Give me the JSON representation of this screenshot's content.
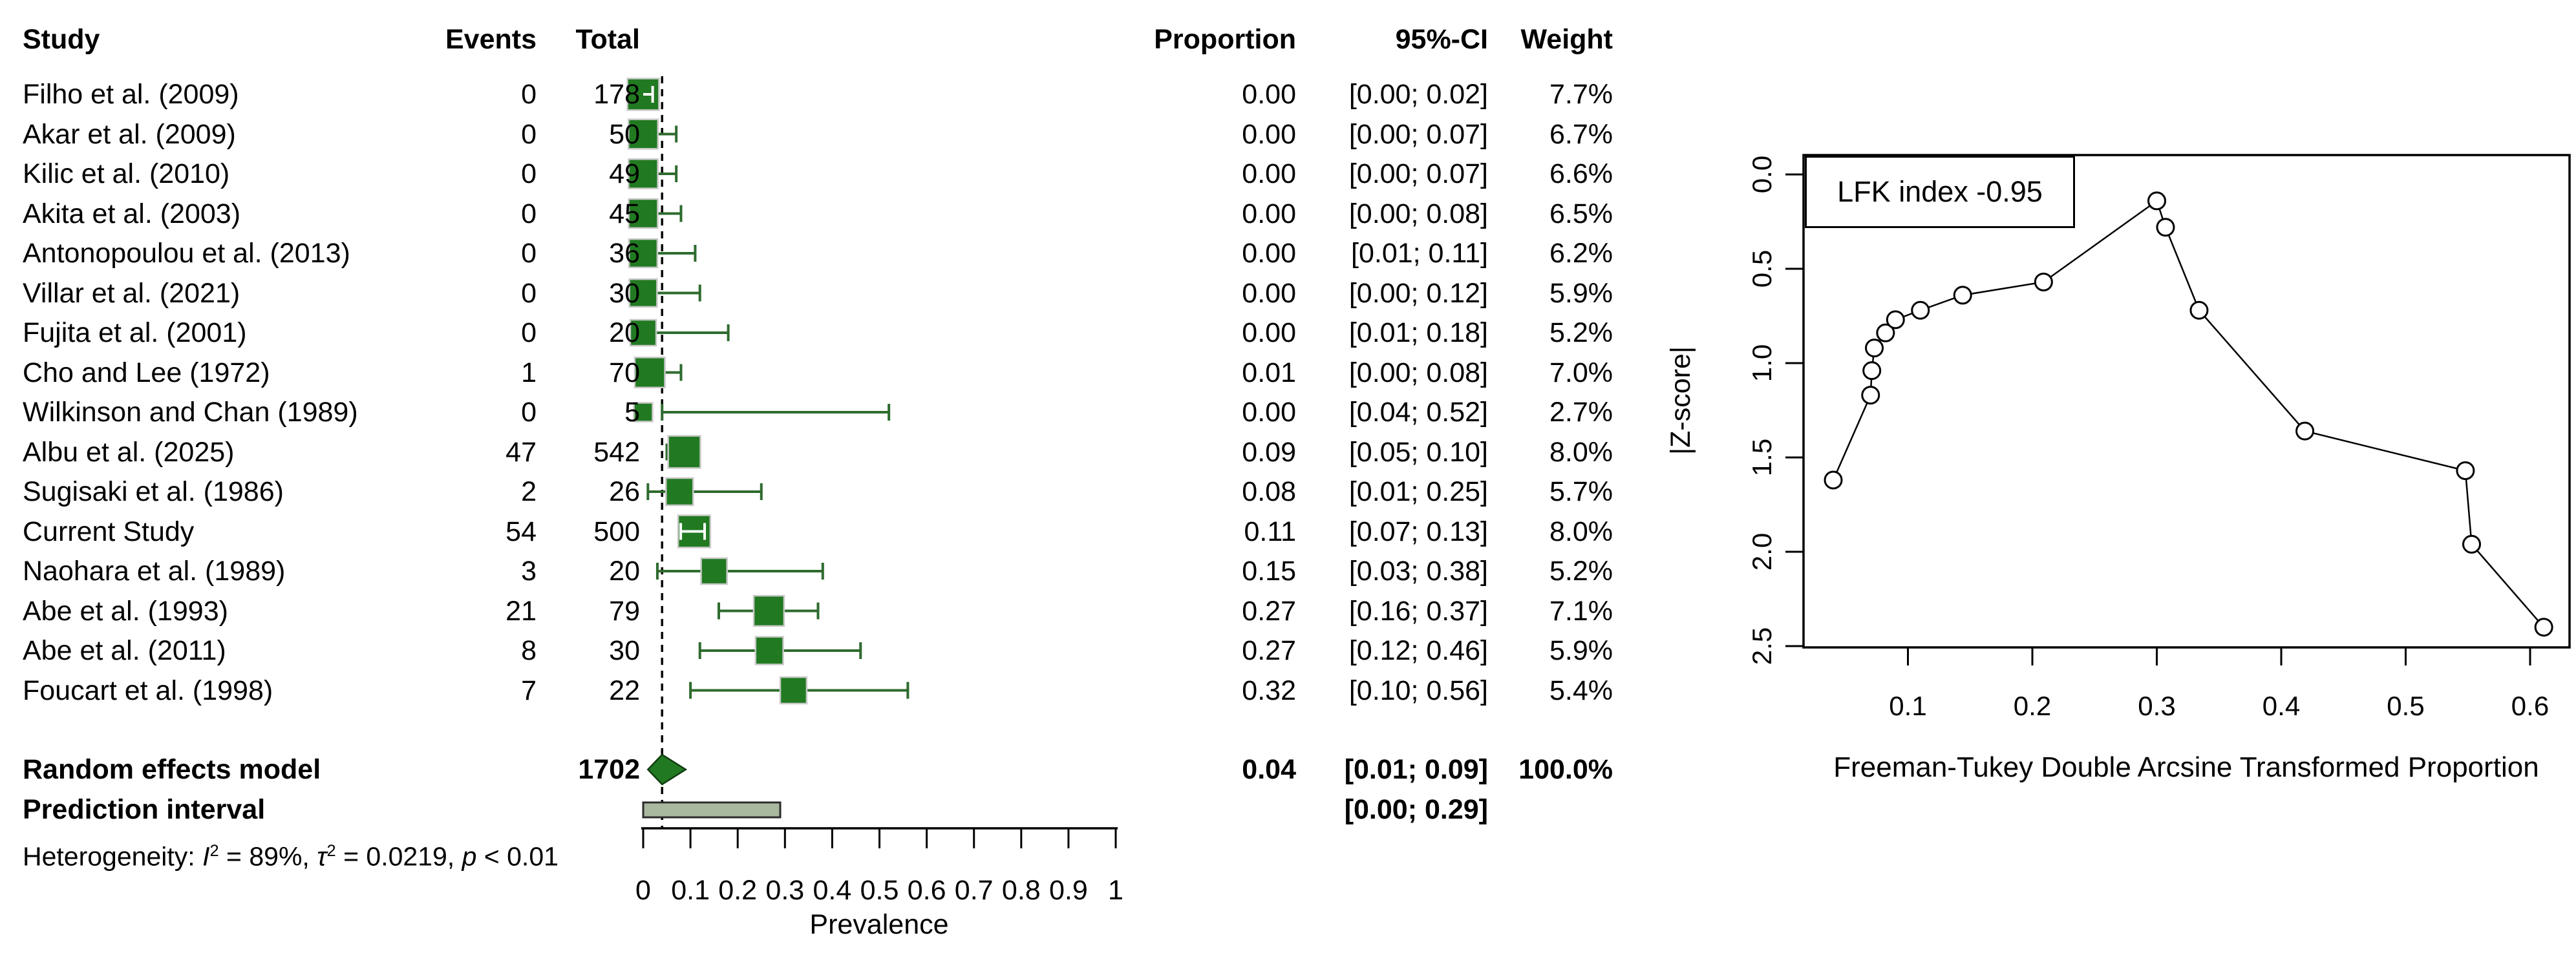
{
  "forest": {
    "columns": {
      "study": "Study",
      "events": "Events",
      "total": "Total",
      "proportion": "Proportion",
      "ci": "95%-CI",
      "weight": "Weight"
    },
    "summary_label": "Random effects model",
    "summary_total": "1702",
    "summary_proportion": "0.04",
    "summary_ci": "[0.01; 0.09]",
    "summary_weight": "100.0%",
    "prediction_label": "Prediction interval",
    "prediction_ci": "[0.00; 0.29]",
    "heterogeneity": {
      "prefix": "Heterogeneity: ",
      "i": "I",
      "i_sup": "2",
      "seg1": " = 89%, ",
      "tau": "τ",
      "tau_sup": "2",
      "seg2": " = 0.0219, ",
      "p": "p",
      "seg3": " < 0.01"
    },
    "xlabel": "Prevalence"
  },
  "doi": {
    "lfk_label": "LFK index -0.95",
    "ylabel": "|Z-score|",
    "xlabel": "Freeman-Tukey Double Arcsine Transformed Proportion"
  },
  "colors": {
    "square": "#217a21",
    "square_border": "#c9c9c9",
    "ci_line": "#2e6b2e",
    "inner_ci": "#ffffff",
    "diamond": "#217a21",
    "diamond_stroke": "#123d12",
    "prediction_fill": "#a9b89f",
    "prediction_stroke": "#2b2b2b",
    "axis": "#000000"
  },
  "chart_data": [
    {
      "type": "table",
      "style": "forest-plot",
      "title": "",
      "xlabel": "Prevalence",
      "xlim": [
        0,
        1
      ],
      "xticks": [
        "0",
        "0.1",
        "0.2",
        "0.3",
        "0.4",
        "0.5",
        "0.6",
        "0.7",
        "0.8",
        "0.9",
        "1"
      ],
      "ref_line": 0.04,
      "studies": [
        {
          "name": "Filho et al. (2009)",
          "events": "0",
          "total": "178",
          "proportion": "0.00",
          "ci": "[0.00; 0.02]",
          "weight": "7.7%",
          "est": 0.0,
          "lo": 0.0,
          "hi": 0.02,
          "w": 7.7,
          "inner_ci": true
        },
        {
          "name": "Akar et al. (2009)",
          "events": "0",
          "total": "50",
          "proportion": "0.00",
          "ci": "[0.00; 0.07]",
          "weight": "6.7%",
          "est": 0.0,
          "lo": 0.0,
          "hi": 0.07,
          "w": 6.7,
          "inner_ci": false
        },
        {
          "name": "Kilic et al. (2010)",
          "events": "0",
          "total": "49",
          "proportion": "0.00",
          "ci": "[0.00; 0.07]",
          "weight": "6.6%",
          "est": 0.0,
          "lo": 0.0,
          "hi": 0.07,
          "w": 6.6,
          "inner_ci": false
        },
        {
          "name": "Akita et al. (2003)",
          "events": "0",
          "total": "45",
          "proportion": "0.00",
          "ci": "[0.00; 0.08]",
          "weight": "6.5%",
          "est": 0.0,
          "lo": 0.0,
          "hi": 0.08,
          "w": 6.5,
          "inner_ci": false
        },
        {
          "name": "Antonopoulou et al. (2013)",
          "events": "0",
          "total": "36",
          "proportion": "0.00",
          "ci": "[0.01; 0.11]",
          "weight": "6.2%",
          "est": 0.0,
          "lo": 0.01,
          "hi": 0.11,
          "w": 6.2,
          "inner_ci": false
        },
        {
          "name": "Villar et al. (2021)",
          "events": "0",
          "total": "30",
          "proportion": "0.00",
          "ci": "[0.00; 0.12]",
          "weight": "5.9%",
          "est": 0.0,
          "lo": 0.0,
          "hi": 0.12,
          "w": 5.9,
          "inner_ci": false
        },
        {
          "name": "Fujita et al. (2001)",
          "events": "0",
          "total": "20",
          "proportion": "0.00",
          "ci": "[0.01; 0.18]",
          "weight": "5.2%",
          "est": 0.0,
          "lo": 0.01,
          "hi": 0.18,
          "w": 5.2,
          "inner_ci": false
        },
        {
          "name": "Cho and Lee (1972)",
          "events": "1",
          "total": "70",
          "proportion": "0.01",
          "ci": "[0.00; 0.08]",
          "weight": "7.0%",
          "est": 0.014,
          "lo": 0.0,
          "hi": 0.08,
          "w": 7.0,
          "inner_ci": false
        },
        {
          "name": "Wilkinson and Chan (1989)",
          "events": "0",
          "total": "5",
          "proportion": "0.00",
          "ci": "[0.04; 0.52]",
          "weight": "2.7%",
          "est": 0.0,
          "lo": 0.04,
          "hi": 0.52,
          "w": 2.7,
          "inner_ci": false
        },
        {
          "name": "Albu et al. (2025)",
          "events": "47",
          "total": "542",
          "proportion": "0.09",
          "ci": "[0.05; 0.10]",
          "weight": "8.0%",
          "est": 0.087,
          "lo": 0.05,
          "hi": 0.1,
          "w": 8.0,
          "inner_ci": false
        },
        {
          "name": "Sugisaki et al. (1986)",
          "events": "2",
          "total": "26",
          "proportion": "0.08",
          "ci": "[0.01; 0.25]",
          "weight": "5.7%",
          "est": 0.077,
          "lo": 0.01,
          "hi": 0.25,
          "w": 5.7,
          "inner_ci": false
        },
        {
          "name": "Current Study",
          "events": "54",
          "total": "500",
          "proportion": "0.11",
          "ci": "[0.07; 0.13]",
          "weight": "8.0%",
          "est": 0.108,
          "lo": 0.07,
          "hi": 0.13,
          "w": 8.0,
          "inner_ci": true
        },
        {
          "name": "Naohara et al. (1989)",
          "events": "3",
          "total": "20",
          "proportion": "0.15",
          "ci": "[0.03; 0.38]",
          "weight": "5.2%",
          "est": 0.15,
          "lo": 0.03,
          "hi": 0.38,
          "w": 5.2,
          "inner_ci": false
        },
        {
          "name": "Abe et al. (1993)",
          "events": "21",
          "total": "79",
          "proportion": "0.27",
          "ci": "[0.16; 0.37]",
          "weight": "7.1%",
          "est": 0.266,
          "lo": 0.16,
          "hi": 0.37,
          "w": 7.1,
          "inner_ci": false
        },
        {
          "name": "Abe et al. (2011)",
          "events": "8",
          "total": "30",
          "proportion": "0.27",
          "ci": "[0.12; 0.46]",
          "weight": "5.9%",
          "est": 0.267,
          "lo": 0.12,
          "hi": 0.46,
          "w": 5.9,
          "inner_ci": false
        },
        {
          "name": "Foucart et al. (1998)",
          "events": "7",
          "total": "22",
          "proportion": "0.32",
          "ci": "[0.10; 0.56]",
          "weight": "5.4%",
          "est": 0.318,
          "lo": 0.1,
          "hi": 0.56,
          "w": 5.4,
          "inner_ci": false
        }
      ],
      "summary": {
        "label": "Random effects model",
        "total": "1702",
        "proportion": "0.04",
        "est": 0.04,
        "lo": 0.01,
        "hi": 0.09,
        "ci": "[0.01; 0.09]",
        "weight": "100.0%"
      },
      "prediction_interval": {
        "label": "Prediction interval",
        "lo": 0.0,
        "hi": 0.29,
        "ci": "[0.00; 0.29]"
      },
      "heterogeneity_text": "Heterogeneity: I² = 89%, τ² = 0.0219, p < 0.01"
    },
    {
      "type": "scatter",
      "title": "LFK index -0.95",
      "lfk_index": -0.95,
      "xlabel": "Freeman-Tukey Double Arcsine Transformed Proportion",
      "ylabel": "|Z-score|",
      "xlim": [
        0.016,
        0.63
      ],
      "ylim_reversed": [
        0,
        2.5
      ],
      "xticks": [
        "0.1",
        "0.2",
        "0.3",
        "0.4",
        "0.5",
        "0.6"
      ],
      "yticks": [
        "0.0",
        "0.5",
        "1.0",
        "1.5",
        "2.0",
        "2.5"
      ],
      "x": [
        0.04,
        0.07,
        0.071,
        0.073,
        0.082,
        0.09,
        0.11,
        0.144,
        0.209,
        0.3,
        0.307,
        0.334,
        0.419,
        0.548,
        0.553,
        0.611
      ],
      "y": [
        1.62,
        1.17,
        1.04,
        0.92,
        0.84,
        0.77,
        0.72,
        0.64,
        0.57,
        0.14,
        0.28,
        0.72,
        1.36,
        1.57,
        1.96,
        2.4
      ],
      "marker": "open-circle",
      "line": "connected",
      "grid": false
    }
  ]
}
